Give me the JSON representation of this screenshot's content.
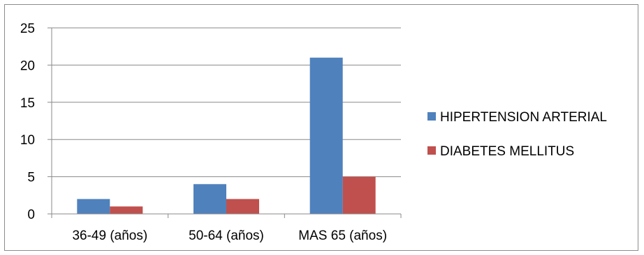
{
  "chart_data": {
    "type": "bar",
    "title": "",
    "xlabel": "",
    "ylabel": "",
    "categories": [
      "36-49 (años)",
      "50-64 (años)",
      "MAS 65 (años)"
    ],
    "series": [
      {
        "name": "HIPERTENSION ARTERIAL",
        "values": [
          2,
          4,
          21
        ],
        "color": "#4f81bd"
      },
      {
        "name": "DIABETES MELLITUS",
        "values": [
          1,
          2,
          5
        ],
        "color": "#c0504d"
      }
    ],
    "ylim": [
      0,
      25
    ],
    "yticks": [
      "0",
      "5",
      "10",
      "15",
      "20",
      "25"
    ],
    "grid": true,
    "legend_position": "right"
  }
}
